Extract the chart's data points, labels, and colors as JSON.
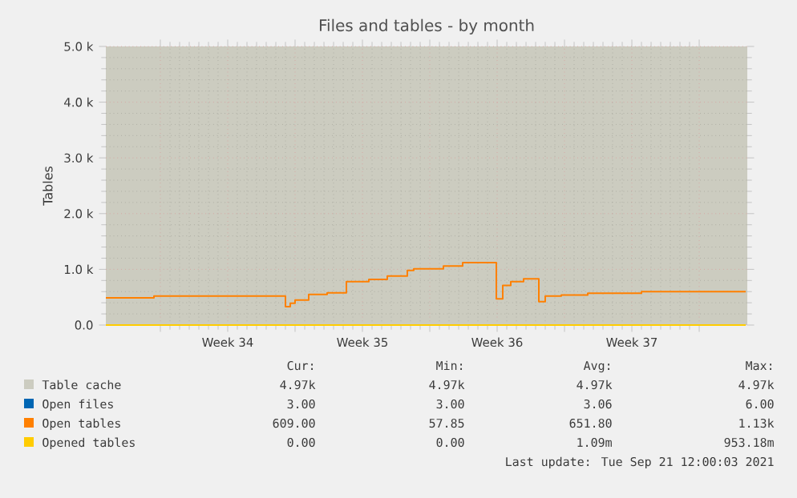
{
  "chart_data": {
    "type": "step",
    "title": "Files and tables - by month",
    "ylabel": "Tables",
    "xlim": [
      "2021-08-19T04:00",
      "2021-09-21T12:00"
    ],
    "ylim": [
      0,
      5000
    ],
    "xticks": [
      {
        "value": "2021-08-22T00:00",
        "label": null
      },
      {
        "value": "2021-08-25T12:00",
        "label": "Week 34"
      },
      {
        "value": "2021-08-29T00:00",
        "label": null
      },
      {
        "value": "2021-09-01T12:00",
        "label": "Week 35"
      },
      {
        "value": "2021-09-05T00:00",
        "label": null
      },
      {
        "value": "2021-09-08T12:00",
        "label": "Week 36"
      },
      {
        "value": "2021-09-12T00:00",
        "label": null
      },
      {
        "value": "2021-09-15T12:00",
        "label": "Week 37"
      },
      {
        "value": "2021-09-19T00:00",
        "label": null
      }
    ],
    "yticks": [
      {
        "value": 0,
        "label": "0.0"
      },
      {
        "value": 1000,
        "label": "1.0 k"
      },
      {
        "value": 2000,
        "label": "2.0 k"
      },
      {
        "value": 3000,
        "label": "3.0 k"
      },
      {
        "value": 4000,
        "label": "4.0 k"
      },
      {
        "value": 5000,
        "label": "5.0 k"
      }
    ],
    "grid": true,
    "legend": "bottom",
    "series": [
      {
        "name": "Table cache",
        "color": "#ccccc0",
        "values": [
          null
        ]
      },
      {
        "name": "Open files",
        "color": "#0066b3",
        "values": [
          null
        ]
      },
      {
        "name": "Open tables",
        "color": "#ff8000",
        "x": [
          "2021-08-19T04:00",
          "2021-08-21T16:00",
          "2021-08-28T12:00",
          "2021-08-28T18:00",
          "2021-08-29T00:00",
          "2021-08-29T17:00",
          "2021-08-30T16:00",
          "2021-08-31T16:00",
          "2021-09-01T20:00",
          "2021-09-02T19:00",
          "2021-09-03T20:00",
          "2021-09-04T04:00",
          "2021-09-05T17:00",
          "2021-09-06T17:00",
          "2021-09-08T11:00",
          "2021-09-08T13:00",
          "2021-09-08T19:00",
          "2021-09-09T05:00",
          "2021-09-09T21:00",
          "2021-09-10T16:00",
          "2021-09-10T19:00",
          "2021-09-11T00:00",
          "2021-09-11T20:00",
          "2021-09-13T05:00",
          "2021-09-16T00:00",
          "2021-09-21T10:00"
        ],
        "values": [
          490,
          520,
          330,
          390,
          450,
          550,
          580,
          780,
          820,
          880,
          980,
          1010,
          1060,
          1120,
          470,
          470,
          710,
          780,
          830,
          420,
          420,
          520,
          540,
          570,
          600,
          600
        ]
      },
      {
        "name": "Opened tables",
        "color": "#ffcc00",
        "x": [
          "2021-08-19T04:00",
          "2021-09-21T10:00"
        ],
        "values": [
          0,
          0
        ]
      }
    ],
    "annotations": [
      "Cur:",
      "Min:",
      "Avg:",
      "Max:",
      "4.97k",
      "4.97k",
      "4.97k",
      "4.97k",
      "3.00",
      "3.00",
      "3.06",
      "6.00",
      "609.00",
      "57.85",
      "651.80",
      "1.13k",
      "0.00",
      "0.00",
      "1.09m",
      "953.18m",
      "Last update: Tue Sep 21 12:00:03 2021"
    ]
  }
}
